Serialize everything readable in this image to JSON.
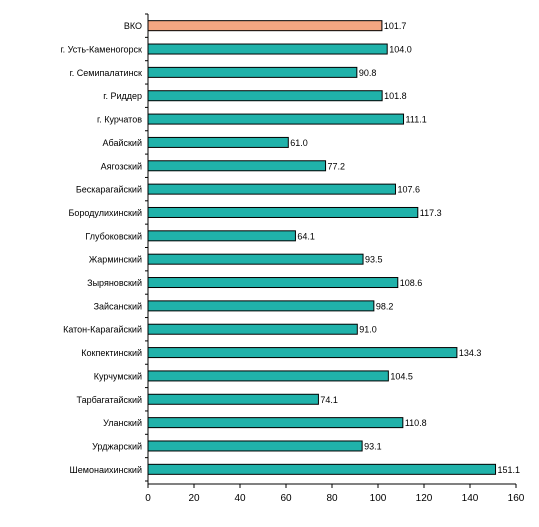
{
  "chart_data": {
    "type": "bar",
    "orientation": "horizontal",
    "categories": [
      "ВКО",
      "г. Усть-Каменогорск",
      "г. Семипалатинск",
      "г. Риддер",
      "г. Курчатов",
      "Абайский",
      "Аягозский",
      "Бескарагайский",
      "Бородулихинский",
      "Глубоковский",
      "Жарминский",
      "Зыряновский",
      "Зайсанский",
      "Катон-Карагайский",
      "Кокпектинский",
      "Курчумский",
      "Тарбагатайский",
      "Уланский",
      "Урджарский",
      "Шемонаихинский"
    ],
    "values": [
      101.7,
      104.0,
      90.8,
      101.8,
      111.1,
      61.0,
      77.2,
      107.6,
      117.3,
      64.1,
      93.5,
      108.6,
      98.2,
      91.0,
      134.3,
      104.5,
      74.1,
      110.8,
      93.1,
      151.1
    ],
    "value_labels": [
      "101.7",
      "104.0",
      "90.8",
      "101.8",
      "111.1",
      "61.0",
      "77.2",
      "107.6",
      "117.3",
      "64.1",
      "93.5",
      "108.6",
      "98.2",
      "91.0",
      "134.3",
      "104.5",
      "74.1",
      "110.8",
      "93.1",
      "151.1"
    ],
    "highlight_index": 0,
    "xlim": [
      0,
      160
    ],
    "x_ticks": [
      0,
      20,
      40,
      60,
      80,
      100,
      120,
      140,
      160
    ],
    "x_tick_labels": [
      "0",
      "20",
      "40",
      "60",
      "80",
      "100",
      "120",
      "140",
      "160"
    ],
    "grid": false,
    "legend": "none",
    "title": "",
    "xlabel": "",
    "ylabel": "",
    "colors": {
      "bar": "#20B2AA",
      "highlight": "#F4A682",
      "bar_stroke": "#000000",
      "axis": "#000000"
    }
  }
}
